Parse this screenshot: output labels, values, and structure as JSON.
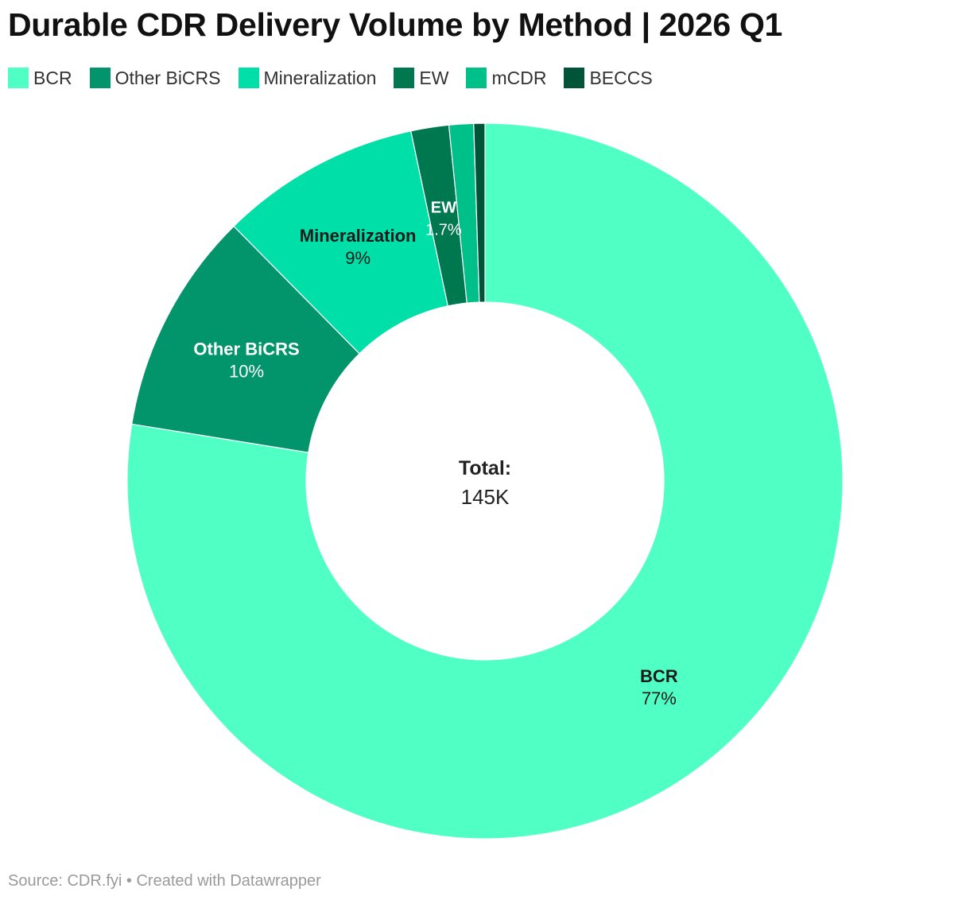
{
  "chart_data": {
    "type": "pie",
    "variant": "donut",
    "title": "Durable CDR Delivery Volume by Method | 2026 Q1",
    "legend_position": "top",
    "slices": [
      {
        "label": "BCR",
        "percent": 77,
        "value_label": "77%",
        "color": "#50ffc4",
        "label_dark": true,
        "show_label": true
      },
      {
        "label": "Other BiCRS",
        "percent": 10,
        "value_label": "10%",
        "color": "#02946a",
        "label_dark": false,
        "show_label": true
      },
      {
        "label": "Mineralization",
        "percent": 9,
        "value_label": "9%",
        "color": "#00dfa7",
        "label_dark": true,
        "show_label": true
      },
      {
        "label": "EW",
        "percent": 1.7,
        "value_label": "1.7%",
        "color": "#00784f",
        "label_dark": false,
        "show_label": true
      },
      {
        "label": "mCDR",
        "percent": 1.1,
        "value_label": "",
        "color": "#00c08a",
        "label_dark": true,
        "show_label": false
      },
      {
        "label": "BECCS",
        "percent": 0.5,
        "value_label": "",
        "color": "#005437",
        "label_dark": false,
        "show_label": false
      }
    ],
    "center": {
      "label": "Total:",
      "value": "145K"
    }
  },
  "footer": "Source: CDR.fyi • Created with Datawrapper"
}
